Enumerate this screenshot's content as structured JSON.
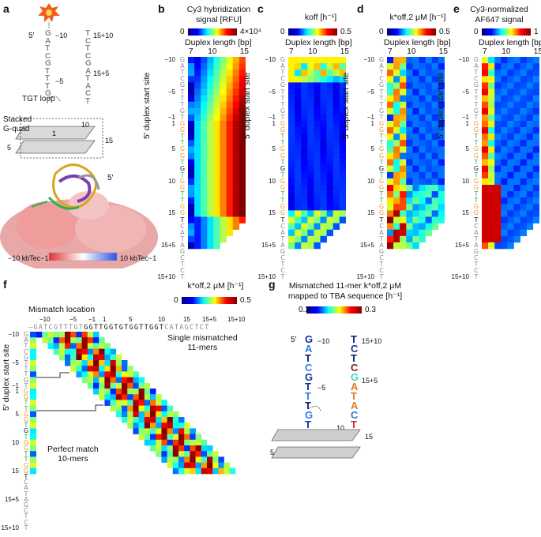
{
  "panels": {
    "a": {
      "label": "a",
      "tgt_loop": "TGT loop",
      "stacked": "Stacked",
      "gquad": "G-quad",
      "scale_left": "−10 kbTec−1",
      "scale_right": "10 kbTec−1",
      "five_prime": "5′",
      "five_prime2": "5′",
      "num_m10": "−10",
      "num_m5": "−5",
      "num_1": "1",
      "num_5": "5",
      "num_10": "10",
      "num_15": "15",
      "num_15p5": "15+5",
      "num_15p10": "15+10"
    },
    "b": {
      "label": "b",
      "title1": "Cy3 hybridization",
      "title2": "signal [RFU]",
      "cb_min": "0",
      "cb_max": "4×10⁴",
      "xlabel": "Duplex length [bp]"
    },
    "c": {
      "label": "c",
      "title1": "koff [h⁻¹]",
      "cb_min": "0",
      "cb_max": "0.5",
      "xlabel": "Duplex length [bp]"
    },
    "d": {
      "label": "d",
      "title1": "k*off,2 μM [h⁻¹]",
      "cb_min": "0",
      "cb_max": "0.5",
      "xlabel": "Duplex length [bp]"
    },
    "e": {
      "label": "e",
      "title1": "Cy3-normalized",
      "title2": "AF647 signal",
      "cb_min": "0",
      "cb_max": "1",
      "xlabel": "Duplex length [bp]"
    },
    "f": {
      "label": "f",
      "title1": "k*off,2 μM [h⁻¹]",
      "cb_min": "0",
      "cb_max": "0.5",
      "mismatch_location": "Mismatch location",
      "single_mm": "Single mismatched",
      "single_mm2": "11-mers",
      "perfect": "Perfect match",
      "perfect2": "10-mers",
      "seq_top": "–GATCGTTTGTGGTTGGTGTGGTTGGTCATAGCTCT",
      "xticks": [
        "−10",
        "−5",
        "−1",
        "1",
        "5",
        "10",
        "15",
        "15+5",
        "15+10"
      ]
    },
    "g": {
      "label": "g",
      "title1": "Mismatched 11-mer k*off,2 μM",
      "title2": "mapped to TBA sequence [h⁻¹]",
      "cb_min": "0.2",
      "cb_max": "0.3",
      "num_m10": "−10",
      "num_m5": "−5",
      "num_15p10": "15+10",
      "num_15p5": "15+5",
      "num_10": "10",
      "num_15": "15",
      "num_5": "5",
      "five_prime": "5′"
    }
  },
  "common": {
    "ylabel": "5′ duplex start site",
    "xticks": [
      "7",
      "10",
      "15"
    ],
    "row_ticks": [
      "−10",
      "−5",
      "−1",
      "1",
      "5",
      "10",
      "15",
      "15+5",
      "15+10"
    ],
    "sequence": "GATCGTTTGTGGTTGGTGTGGTTGGTCATAGCTCT"
  },
  "colors": {
    "gray": "#8a8a8a",
    "green": "#29b34a",
    "orange": "#e89a2c",
    "black": "#111111"
  }
}
